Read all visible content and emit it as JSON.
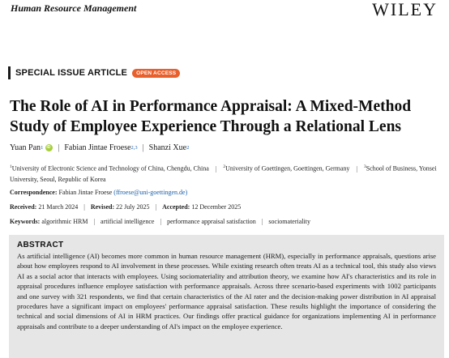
{
  "header": {
    "journal": "Human Resource Management",
    "publisher": "WILEY"
  },
  "article": {
    "type": "SPECIAL ISSUE ARTICLE",
    "access": "OPEN ACCESS",
    "title": "The Role of AI in Performance Appraisal: A Mixed-Method Study of Employee Experience Through a Relational Lens"
  },
  "authors": [
    {
      "name": "Yuan Pan",
      "sup": "1"
    },
    {
      "name": "Fabian Jintae Froese",
      "sup": "2,3"
    },
    {
      "name": "Shanzi Xue",
      "sup": "2"
    }
  ],
  "affiliations": [
    {
      "sup": "1",
      "text": "University of Electronic Science and Technology of China, Chengdu, China"
    },
    {
      "sup": "2",
      "text": "University of Goettingen, Goettingen, Germany"
    },
    {
      "sup": "3",
      "text": "School of Business, Yonsei University, Seoul, Republic of Korea"
    }
  ],
  "correspondence": {
    "label": "Correspondence:",
    "name": "Fabian Jintae Froese",
    "email": "(ffroese@uni-goettingen.de)"
  },
  "dates": {
    "received_label": "Received:",
    "received": "21 March 2024",
    "revised_label": "Revised:",
    "revised": "22 July 2025",
    "accepted_label": "Accepted:",
    "accepted": "12 December 2025"
  },
  "keywords": {
    "label": "Keywords:",
    "items": [
      "algorithmic HRM",
      "artificial intelligence",
      "performance appraisal satisfaction",
      "sociomateriality"
    ]
  },
  "abstract": {
    "heading": "ABSTRACT",
    "text": "As artificial intelligence (AI) becomes more common in human resource management (HRM), especially in performance appraisals, questions arise about how employees respond to AI involvement in these processes. While existing research often treats AI as a technical tool, this study also views AI as a social actor that interacts with employees. Using sociomateriality and attribution theory, we examine how AI's characteristics and its role in appraisal procedures influence employee satisfaction with performance appraisals. Across three scenario-based experiments with 1002 participants and one survey with 321 respondents, we find that certain characteristics of the AI rater and the decision-making power distribution in AI appraisal procedures have a significant impact on employees' performance appraisal satisfaction. These results highlight the importance of considering the technical and social dimensions of AI in HRM practices. Our findings offer practical guidance for organizations implementing AI in performance appraisals and contribute to a deeper understanding of AI's impact on the employee experience."
  },
  "colors": {
    "badge": "#e8602c",
    "link": "#1a5fa8",
    "abstract_bg": "#e6e6e6",
    "orcid": "#a6ce39"
  }
}
